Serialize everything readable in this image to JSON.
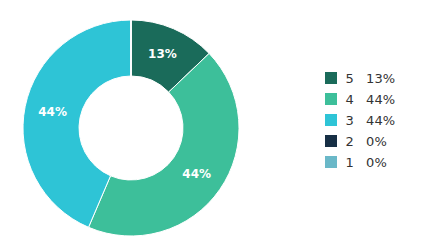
{
  "chart_data": {
    "type": "pie",
    "categories": [
      "5   13%",
      "4   44%",
      "3   44%",
      "2   0%",
      "1   0%"
    ],
    "values": [
      13,
      44,
      44,
      0.001,
      0.001
    ],
    "value_labels": [
      "13%",
      "44%",
      "44%",
      null,
      null
    ],
    "colors": [
      "#1a6b5a",
      "#3dbf9a",
      "#2ec4d6",
      "#172f45",
      "#6ab8c8"
    ],
    "data_labels": true,
    "legend": "right"
  }
}
